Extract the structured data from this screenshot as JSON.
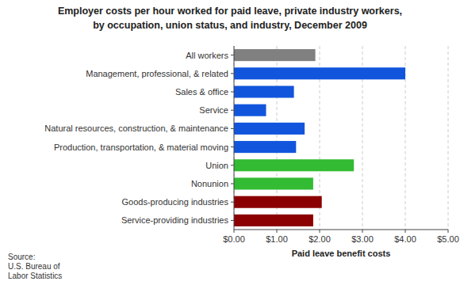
{
  "chart_data": {
    "type": "bar",
    "orientation": "horizontal",
    "title": "Employer costs per hour worked for paid leave, private industry workers,",
    "subtitle": "by occupation, union status, and industry, December 2009",
    "categories": [
      "Service-providing industries",
      "Goods-producing industries",
      "Nonunion",
      "Union",
      "Production, transportation, & material moving",
      "Natural resources, construction, & maintenance",
      "Service",
      "Sales & office",
      "Management, professional, & related",
      "All workers"
    ],
    "values": [
      1.85,
      2.05,
      1.85,
      2.8,
      1.45,
      1.65,
      0.75,
      1.4,
      4.0,
      1.9
    ],
    "colors": [
      "#8B0000",
      "#8B0000",
      "#33BB33",
      "#33BB33",
      "#1155DD",
      "#1155DD",
      "#1155DD",
      "#1155DD",
      "#1155DD",
      "#808080"
    ],
    "xlabel": "Paid leave benefit costs",
    "xlim": [
      0,
      5.0
    ],
    "xticks": [
      {
        "value": 0.0,
        "label": "$0.00"
      },
      {
        "value": 1.0,
        "label": "$1.00"
      },
      {
        "value": 2.0,
        "label": "$2.00"
      },
      {
        "value": 3.0,
        "label": "$3.00"
      },
      {
        "value": 4.0,
        "label": "$4.00"
      },
      {
        "value": 5.0,
        "label": "$5.00"
      }
    ],
    "grid": true,
    "annotations": [
      "Source:\nU.S. Bureau of\nLabor Statistics"
    ]
  }
}
